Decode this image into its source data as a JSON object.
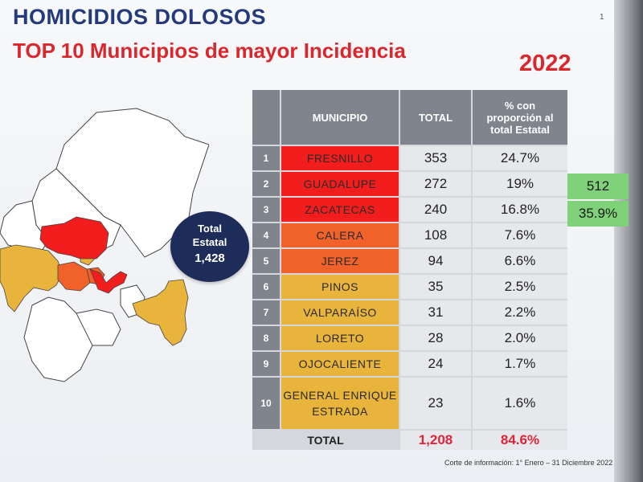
{
  "header": {
    "title": "HOMICIDIOS DOLOSOS",
    "subtitle": "TOP 10 Municipios de mayor Incidencia",
    "year": "2022",
    "page_number": "1"
  },
  "badge": {
    "line1": "Total",
    "line2": "Estatal",
    "value": "1,428"
  },
  "table": {
    "headers": {
      "municipio": "MUNICIPIO",
      "total": "TOTAL",
      "pct": "% con proporción al total Estatal"
    },
    "rows": [
      {
        "rank": "1",
        "municipio": "FRESNILLO",
        "total": "353",
        "pct": "24.7%",
        "color": "#f21d1d"
      },
      {
        "rank": "2",
        "municipio": "GUADALUPE",
        "total": "272",
        "pct": "19%",
        "color": "#f21d1d"
      },
      {
        "rank": "3",
        "municipio": "ZACATECAS",
        "total": "240",
        "pct": "16.8%",
        "color": "#f21d1d"
      },
      {
        "rank": "4",
        "municipio": "CALERA",
        "total": "108",
        "pct": "7.6%",
        "color": "#f0622a"
      },
      {
        "rank": "5",
        "municipio": "JEREZ",
        "total": "94",
        "pct": "6.6%",
        "color": "#f0622a"
      },
      {
        "rank": "6",
        "municipio": "PINOS",
        "total": "35",
        "pct": "2.5%",
        "color": "#e8b43c"
      },
      {
        "rank": "7",
        "municipio": "VALPARAÍSO",
        "total": "31",
        "pct": "2.2%",
        "color": "#e8b43c"
      },
      {
        "rank": "8",
        "municipio": "LORETO",
        "total": "28",
        "pct": "2.0%",
        "color": "#e8b43c"
      },
      {
        "rank": "9",
        "municipio": "OJOCALIENTE",
        "total": "24",
        "pct": "1.7%",
        "color": "#e8b43c"
      },
      {
        "rank": "10",
        "municipio": "GENERAL ENRIQUE ESTRADA",
        "total": "23",
        "pct": "1.6%",
        "color": "#e8b43c"
      }
    ],
    "total_row": {
      "label": "TOTAL",
      "total": "1,208",
      "pct": "84.6%"
    }
  },
  "side_summary": {
    "value": "512",
    "pct": "35.9%",
    "color": "#7fd17a"
  },
  "footnote": "Corte de información:  1° Enero – 31 Diciembre 2022",
  "colors": {
    "title_blue": "#243a7a",
    "accent_red": "#d9272e",
    "red": "#f21d1d",
    "orange": "#f0622a",
    "yellow": "#e8b43c",
    "header_gray": "#80848c"
  }
}
